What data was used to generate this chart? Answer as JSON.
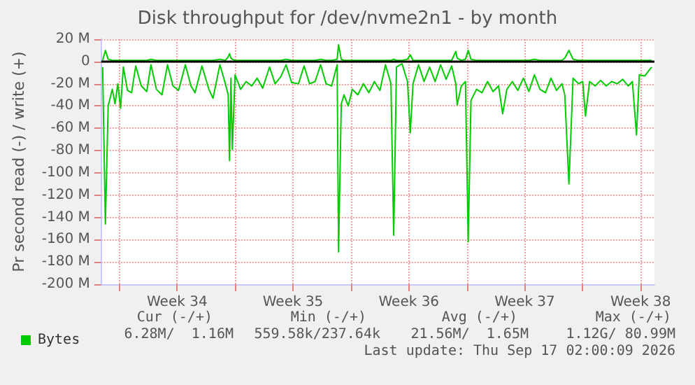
{
  "chart_data": {
    "type": "line",
    "title": "Disk throughput for /dev/nvme2n1 - by month",
    "ylabel": "Pr second read (-) / write (+)",
    "x": [
      "2026-08-16T00:00",
      "2026-08-16T04:00",
      "2026-08-16T08:00",
      "2026-08-16T14:00",
      "2026-08-16T18:00",
      "2026-08-16T22:00",
      "2026-08-17T02:00",
      "2026-08-17T06:00",
      "2026-08-17T12:00",
      "2026-08-17T18:00",
      "2026-08-18T00:00",
      "2026-08-18T08:00",
      "2026-08-18T16:00",
      "2026-08-18T22:00",
      "2026-08-19T06:00",
      "2026-08-19T14:00",
      "2026-08-19T22:00",
      "2026-08-20T06:00",
      "2026-08-20T14:00",
      "2026-08-21T00:00",
      "2026-08-21T08:00",
      "2026-08-21T14:00",
      "2026-08-22T00:00",
      "2026-08-22T10:00",
      "2026-08-22T16:00",
      "2026-08-23T02:00",
      "2026-08-23T10:00",
      "2026-08-23T14:00",
      "2026-08-23T16:00",
      "2026-08-23T18:00",
      "2026-08-23T20:00",
      "2026-08-24T00:00",
      "2026-08-24T08:00",
      "2026-08-24T16:00",
      "2026-08-25T00:00",
      "2026-08-25T08:00",
      "2026-08-25T16:00",
      "2026-08-26T02:00",
      "2026-08-26T10:00",
      "2026-08-26T18:00",
      "2026-08-27T02:00",
      "2026-08-27T10:00",
      "2026-08-27T20:00",
      "2026-08-28T04:00",
      "2026-08-28T12:00",
      "2026-08-28T20:00",
      "2026-08-29T04:00",
      "2026-08-29T12:00",
      "2026-08-29T20:00",
      "2026-08-30T04:00",
      "2026-08-30T06:00",
      "2026-08-30T10:00",
      "2026-08-30T14:00",
      "2026-08-30T20:00",
      "2026-08-31T02:00",
      "2026-08-31T10:00",
      "2026-08-31T18:00",
      "2026-09-01T02:00",
      "2026-09-01T10:00",
      "2026-09-01T18:00",
      "2026-09-02T02:00",
      "2026-09-02T10:00",
      "2026-09-02T14:00",
      "2026-09-02T18:00",
      "2026-09-03T02:00",
      "2026-09-03T10:00",
      "2026-09-03T14:00",
      "2026-09-03T18:00",
      "2026-09-04T02:00",
      "2026-09-04T10:00",
      "2026-09-04T18:00",
      "2026-09-05T02:00",
      "2026-09-05T10:00",
      "2026-09-05T18:00",
      "2026-09-06T02:00",
      "2026-09-06T08:00",
      "2026-09-06T10:00",
      "2026-09-06T16:00",
      "2026-09-06T22:00",
      "2026-09-07T02:00",
      "2026-09-07T06:00",
      "2026-09-07T14:00",
      "2026-09-07T22:00",
      "2026-09-08T06:00",
      "2026-09-08T14:00",
      "2026-09-08T22:00",
      "2026-09-09T04:00",
      "2026-09-09T10:00",
      "2026-09-09T18:00",
      "2026-09-10T02:00",
      "2026-09-10T10:00",
      "2026-09-10T18:00",
      "2026-09-11T02:00",
      "2026-09-11T10:00",
      "2026-09-11T18:00",
      "2026-09-12T02:00",
      "2026-09-12T10:00",
      "2026-09-12T18:00",
      "2026-09-12T22:00",
      "2026-09-13T04:00",
      "2026-09-13T10:00",
      "2026-09-13T18:00",
      "2026-09-14T00:00",
      "2026-09-14T04:00",
      "2026-09-14T10:00",
      "2026-09-14T18:00",
      "2026-09-15T02:00",
      "2026-09-15T10:00",
      "2026-09-15T18:00",
      "2026-09-16T02:00",
      "2026-09-16T10:00",
      "2026-09-16T18:00",
      "2026-09-17T00:00",
      "2026-09-17T06:00",
      "2026-09-17T10:00",
      "2026-09-17T18:00",
      "2026-09-18T00:00",
      "2026-09-18T04:00"
    ],
    "series": [
      {
        "name": "Bytes",
        "color": "#00cc00",
        "values": [
          -5,
          -146,
          -40,
          -25,
          -38,
          -20,
          -42,
          -5,
          -26,
          -28,
          -4,
          -22,
          -27,
          -3,
          -25,
          -30,
          -3,
          -22,
          -26,
          -3,
          -22,
          -28,
          -4,
          -25,
          -33,
          -3,
          -20,
          -30,
          -89,
          -15,
          -79,
          -12,
          -25,
          -18,
          -22,
          -15,
          -24,
          -5,
          -20,
          -14,
          -3,
          -19,
          -20,
          -4,
          -20,
          -18,
          -3,
          -20,
          -22,
          -3,
          -171,
          -38,
          -30,
          -40,
          -25,
          -30,
          -20,
          -28,
          -18,
          -26,
          -3,
          -20,
          -156,
          -5,
          -2,
          -18,
          -64,
          -20,
          -3,
          -18,
          -5,
          -18,
          -3,
          -16,
          -4,
          -20,
          -39,
          -22,
          -18,
          -162,
          -35,
          -25,
          -28,
          -18,
          -27,
          -22,
          -47,
          -25,
          -18,
          -26,
          -15,
          -27,
          -12,
          -25,
          -28,
          -15,
          -26,
          -20,
          -30,
          -110,
          -15,
          -20,
          -18,
          -49,
          -18,
          -22,
          -17,
          -22,
          -18,
          -20,
          -16,
          -22,
          -18,
          -66,
          -12,
          -13,
          -8,
          -5
        ]
      },
      {
        "color": "#00cc00",
        "values": [
          1,
          10,
          2,
          1,
          1,
          1,
          1,
          1,
          1,
          1,
          1,
          1,
          1,
          2,
          1,
          1,
          1,
          1,
          1,
          1,
          1,
          1,
          1,
          1,
          1,
          2,
          1,
          4,
          7,
          3,
          2,
          1,
          1,
          1,
          1,
          1,
          1,
          1,
          1,
          1,
          2,
          1,
          1,
          1,
          1,
          1,
          2,
          1,
          1,
          2,
          15,
          2,
          1,
          1,
          1,
          1,
          1,
          1,
          1,
          1,
          1,
          1,
          2,
          1,
          1,
          2,
          6,
          1,
          1,
          1,
          1,
          1,
          1,
          1,
          1,
          9,
          3,
          1,
          2,
          10,
          2,
          1,
          1,
          1,
          1,
          1,
          1,
          1,
          1,
          1,
          1,
          1,
          2,
          1,
          1,
          1,
          1,
          1,
          3,
          10,
          2,
          1,
          1,
          1,
          1,
          1,
          1,
          1,
          1,
          1,
          1,
          1,
          1,
          1,
          1,
          1,
          1,
          1
        ]
      }
    ],
    "xlim": [
      "2026-08-15T22:00",
      "2026-09-18T08:00"
    ],
    "xticks": [
      {
        "value": "2026-08-17T00:00",
        "label": null
      },
      {
        "value": "2026-08-20T12:00",
        "label": "Week 34"
      },
      {
        "value": "2026-08-24T00:00",
        "label": null
      },
      {
        "value": "2026-08-27T12:00",
        "label": "Week 35"
      },
      {
        "value": "2026-08-31T00:00",
        "label": null
      },
      {
        "value": "2026-09-03T12:00",
        "label": "Week 36"
      },
      {
        "value": "2026-09-07T00:00",
        "label": null
      },
      {
        "value": "2026-09-10T12:00",
        "label": "Week 37"
      },
      {
        "value": "2026-09-14T00:00",
        "label": null
      },
      {
        "value": "2026-09-17T12:00",
        "label": "Week 38"
      }
    ],
    "ylim": [
      -200,
      20
    ],
    "yticks": [
      {
        "value": 20,
        "label": "20 M"
      },
      0,
      {
        "value": -20,
        "label": "-20 M"
      },
      {
        "value": -40,
        "label": "-40 M"
      },
      {
        "value": -60,
        "label": "-60 M"
      },
      {
        "value": -80,
        "label": "-80 M"
      },
      {
        "value": -100,
        "label": "-100 M"
      },
      {
        "value": -120,
        "label": "-120 M"
      },
      {
        "value": -140,
        "label": "-140 M"
      },
      {
        "value": -160,
        "label": "-160 M"
      },
      {
        "value": -180,
        "label": "-180 M"
      },
      {
        "value": -200,
        "label": "-200 M"
      }
    ],
    "ref_lines": [
      {
        "axis": "y",
        "value": 0,
        "color": "#000000"
      }
    ],
    "grid": true,
    "legend": "bottom left",
    "marker": "none",
    "line_style": "solid",
    "annotations": [
      "Cur (-/+)",
      "Min (-/+)",
      "Avg (-/+)",
      "Max (-/+)",
      "6.28M/  1.16M",
      "559.58k/237.64k",
      "21.56M/  1.65M",
      "1.12G/ 80.99M",
      "Last update: Thu Sep 17 02:00:09 2026"
    ]
  }
}
